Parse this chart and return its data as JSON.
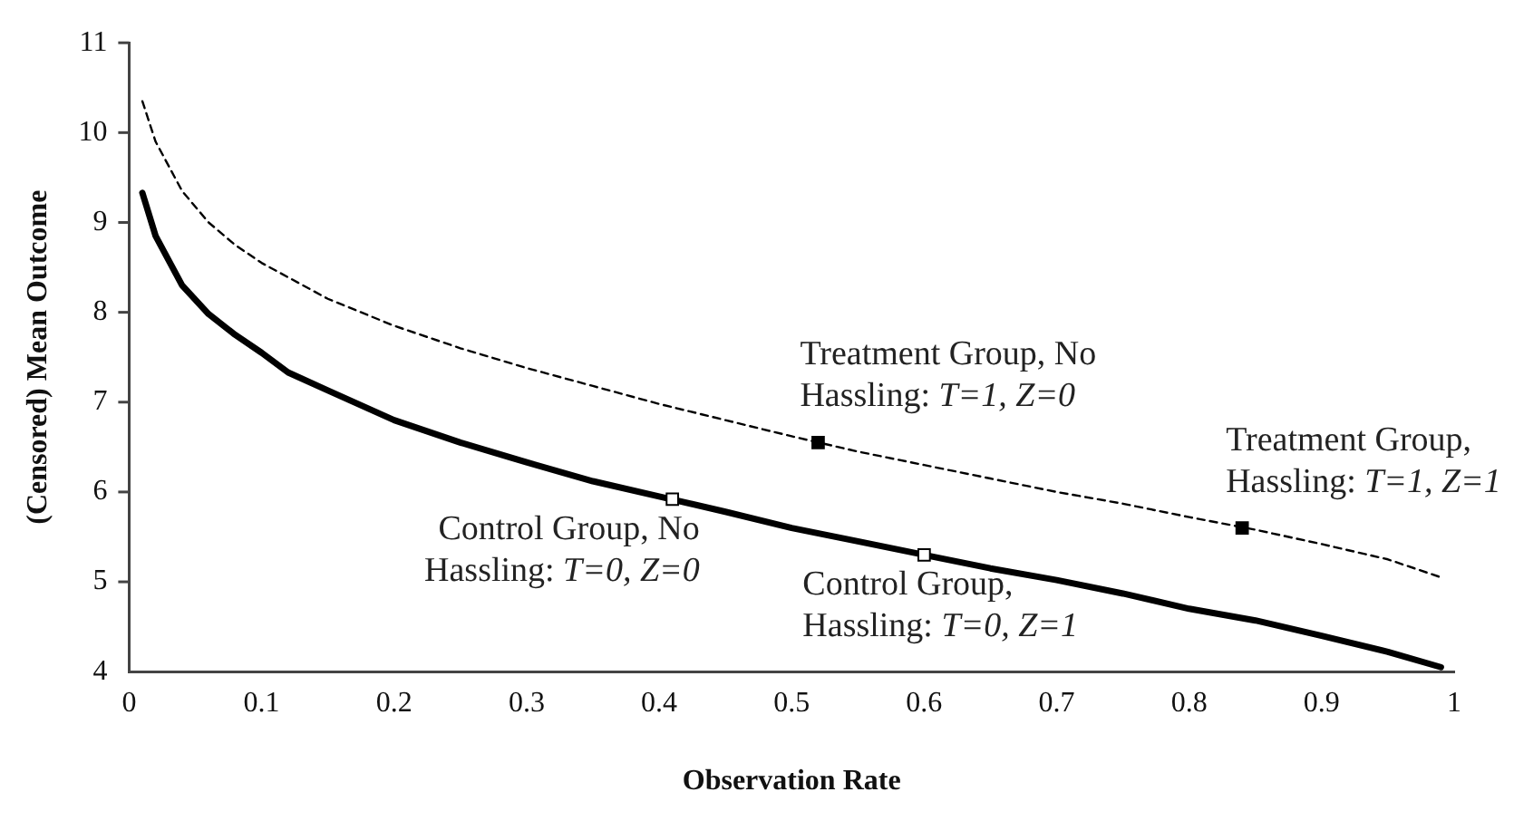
{
  "chart_data": {
    "type": "line",
    "xlabel": "Observation Rate",
    "ylabel": "(Censored) Mean Outcome",
    "xlim": [
      0,
      1
    ],
    "xticks": [
      0,
      0.1,
      0.2,
      0.3,
      0.4,
      0.5,
      0.6,
      0.7,
      0.8,
      0.9,
      1
    ],
    "ylim": [
      4,
      11
    ],
    "yticks": [
      4,
      5,
      6,
      7,
      8,
      9,
      10,
      11
    ],
    "grid": false,
    "legend": false,
    "marker": "none",
    "series": [
      {
        "color": "#000000",
        "line_style": "solid",
        "x": [
          0.01,
          0.02,
          0.04,
          0.06,
          0.08,
          0.1,
          0.12,
          0.15,
          0.2,
          0.25,
          0.3,
          0.35,
          0.4,
          0.45,
          0.5,
          0.55,
          0.6,
          0.65,
          0.7,
          0.75,
          0.8,
          0.85,
          0.9,
          0.95,
          0.99
        ],
        "values": [
          9.33,
          8.85,
          8.3,
          7.98,
          7.75,
          7.55,
          7.33,
          7.13,
          6.8,
          6.55,
          6.33,
          6.12,
          5.95,
          5.78,
          5.6,
          5.45,
          5.3,
          5.15,
          5.02,
          4.87,
          4.7,
          4.57,
          4.4,
          4.22,
          4.05
        ]
      },
      {
        "color": "#000000",
        "line_style": "dashed",
        "x": [
          0.01,
          0.02,
          0.04,
          0.06,
          0.08,
          0.1,
          0.15,
          0.2,
          0.25,
          0.3,
          0.35,
          0.4,
          0.45,
          0.5,
          0.55,
          0.6,
          0.65,
          0.7,
          0.75,
          0.8,
          0.85,
          0.9,
          0.95,
          0.99
        ],
        "values": [
          10.35,
          9.9,
          9.35,
          9.0,
          8.75,
          8.55,
          8.15,
          7.85,
          7.6,
          7.38,
          7.18,
          6.98,
          6.8,
          6.62,
          6.45,
          6.3,
          6.15,
          6.0,
          5.87,
          5.72,
          5.58,
          5.42,
          5.25,
          5.05
        ]
      },
      {
        "type": "scatter",
        "marker": "square",
        "color": "#000000",
        "x": [
          0.52,
          0.84
        ],
        "values": [
          6.55,
          5.6
        ]
      },
      {
        "type": "scatter",
        "marker": "square",
        "color": "#ffffff",
        "x": [
          0.41,
          0.6
        ],
        "values": [
          5.92,
          5.3
        ]
      }
    ],
    "annotations": [
      {
        "text": "Treatment Group, No Hassling: T=1, Z=0",
        "x": 0.52,
        "y": 6.55
      },
      {
        "text": "Treatment Group, Hassling: T=1, Z=1",
        "x": 0.84,
        "y": 5.6
      },
      {
        "text": "Control Group, No Hassling: T=0, Z=0",
        "x": 0.41,
        "y": 5.92
      },
      {
        "text": "Control Group, Hassling: T=0, Z=1",
        "x": 0.6,
        "y": 5.3
      }
    ]
  }
}
